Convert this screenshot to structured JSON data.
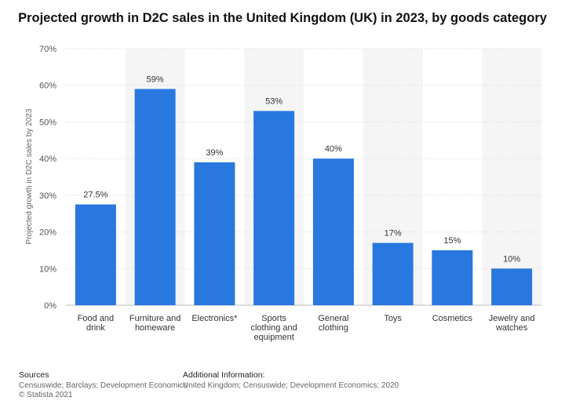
{
  "title": "Projected growth in D2C sales in the United Kingdom (UK) in 2023, by goods category",
  "colors": {
    "bar": "#2878df",
    "band": "#f5f5f5",
    "grid": "#e3e3e3"
  },
  "chart_data": {
    "type": "bar",
    "categories": [
      [
        "Food and",
        "drink"
      ],
      [
        "Furniture and",
        "homeware"
      ],
      [
        "Electronics*"
      ],
      [
        "Sports",
        "clothing and",
        "equipment"
      ],
      [
        "General",
        "clothing"
      ],
      [
        "Toys"
      ],
      [
        "Cosmetics"
      ],
      [
        "Jewelry and",
        "watches"
      ]
    ],
    "values": [
      27.5,
      59,
      39,
      53,
      40,
      17,
      15,
      10
    ],
    "value_labels": [
      "27.5%",
      "59%",
      "39%",
      "53%",
      "40%",
      "17%",
      "15%",
      "10%"
    ],
    "ylabel": "Projected growth in D2C sales by 2023",
    "ylim": [
      0,
      70
    ],
    "yticks": [
      0,
      10,
      20,
      30,
      40,
      50,
      60,
      70
    ],
    "ytick_labels": [
      "0%",
      "10%",
      "20%",
      "30%",
      "40%",
      "50%",
      "60%",
      "70%"
    ],
    "grid": true
  },
  "footer": {
    "sources_heading": "Sources",
    "sources_text": "Censuswide; Barclays; Development Economics",
    "copyright": "© Statista 2021",
    "additional_heading": "Additional Information:",
    "additional_text": "United Kingdom; Censuswide; Development Economics; 2020"
  }
}
